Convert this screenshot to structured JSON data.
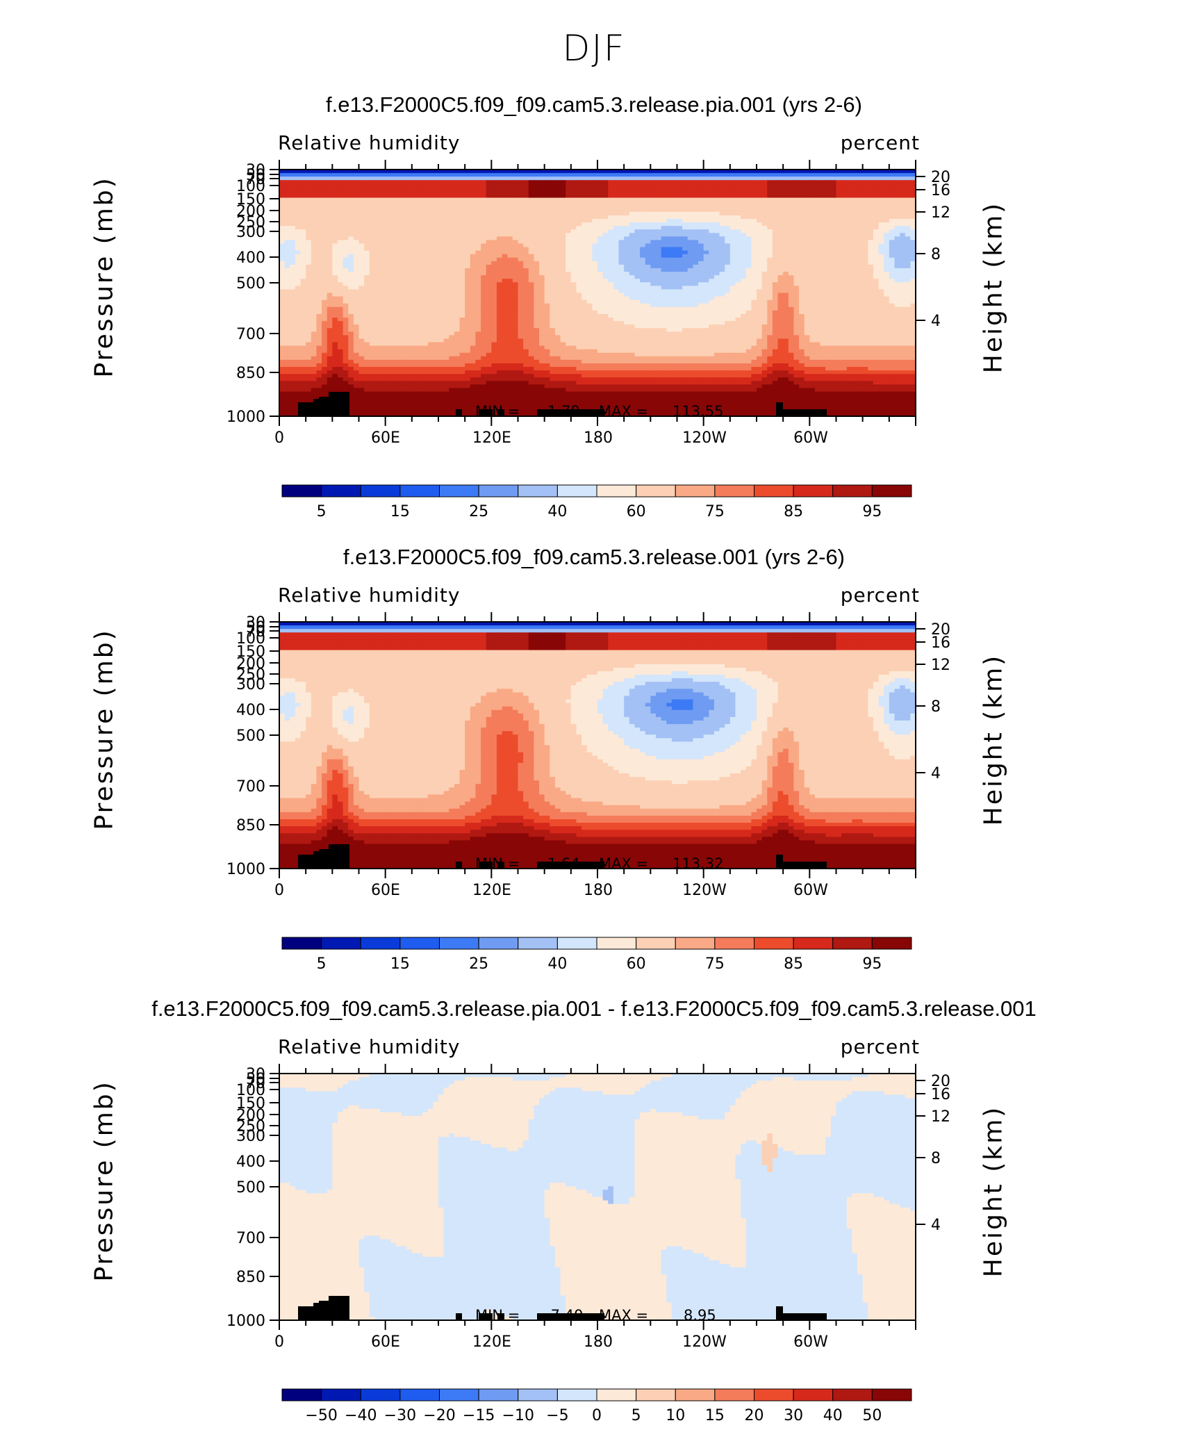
{
  "figure": {
    "title": "DJF"
  },
  "chart_data": [
    {
      "type": "heatmap",
      "title": "f.e13.F2000C5.f09_f09.cam5.3.release.pia.001 (yrs 2-6)",
      "variable": "Relative humidity",
      "units": "percent",
      "ylabel": "Pressure (mb)",
      "ylabel_right": "Height (km)",
      "x_ticks": [
        "0",
        "60E",
        "120E",
        "180",
        "120W",
        "60W"
      ],
      "y_ticks": [
        "30",
        "50",
        "70",
        "100",
        "150",
        "200",
        "250",
        "300",
        "400",
        "500",
        "700",
        "850",
        "1000"
      ],
      "y_ticks_right": [
        "20",
        "16",
        "12",
        "8",
        "4"
      ],
      "min_label": "MIN =",
      "min_value": "1.70",
      "max_label": "MAX =",
      "max_value": "113.55",
      "colorbar_labels": [
        "5",
        "15",
        "25",
        "40",
        "60",
        "75",
        "85",
        "95"
      ]
    },
    {
      "type": "heatmap",
      "title": "f.e13.F2000C5.f09_f09.cam5.3.release.001 (yrs 2-6)",
      "variable": "Relative humidity",
      "units": "percent",
      "ylabel": "Pressure (mb)",
      "ylabel_right": "Height (km)",
      "x_ticks": [
        "0",
        "60E",
        "120E",
        "180",
        "120W",
        "60W"
      ],
      "y_ticks": [
        "30",
        "50",
        "70",
        "100",
        "150",
        "200",
        "250",
        "300",
        "400",
        "500",
        "700",
        "850",
        "1000"
      ],
      "y_ticks_right": [
        "20",
        "16",
        "12",
        "8",
        "4"
      ],
      "min_label": "MIN =",
      "min_value": "1.64",
      "max_label": "MAX =",
      "max_value": "113.32",
      "colorbar_labels": [
        "5",
        "15",
        "25",
        "40",
        "60",
        "75",
        "85",
        "95"
      ]
    },
    {
      "type": "heatmap",
      "title": "f.e13.F2000C5.f09_f09.cam5.3.release.pia.001 - f.e13.F2000C5.f09_f09.cam5.3.release.001",
      "variable": "Relative humidity",
      "units": "percent",
      "ylabel": "Pressure (mb)",
      "ylabel_right": "Height (km)",
      "x_ticks": [
        "0",
        "60E",
        "120E",
        "180",
        "120W",
        "60W"
      ],
      "y_ticks": [
        "30",
        "50",
        "70",
        "100",
        "150",
        "200",
        "250",
        "300",
        "400",
        "500",
        "700",
        "850",
        "1000"
      ],
      "y_ticks_right": [
        "20",
        "16",
        "12",
        "8",
        "4"
      ],
      "min_label": "MIN =",
      "min_value": "−7.40",
      "max_label": "MAX =",
      "max_value": "8.95",
      "colorbar_labels": [
        "−50",
        "−40",
        "−30",
        "−20",
        "−15",
        "−10",
        "−5",
        "0",
        "5",
        "10",
        "15",
        "20",
        "30",
        "40",
        "50"
      ]
    }
  ],
  "colors": {
    "palette": [
      "#00007f",
      "#0019b3",
      "#0a3bd9",
      "#1f5cf0",
      "#3d7af5",
      "#6f9bf2",
      "#a3c1f5",
      "#d4e6fb",
      "#fde9d8",
      "#fcd0b4",
      "#f9a985",
      "#f47c5b",
      "#ec4c2c",
      "#d6291b",
      "#b01812",
      "#880606"
    ]
  }
}
